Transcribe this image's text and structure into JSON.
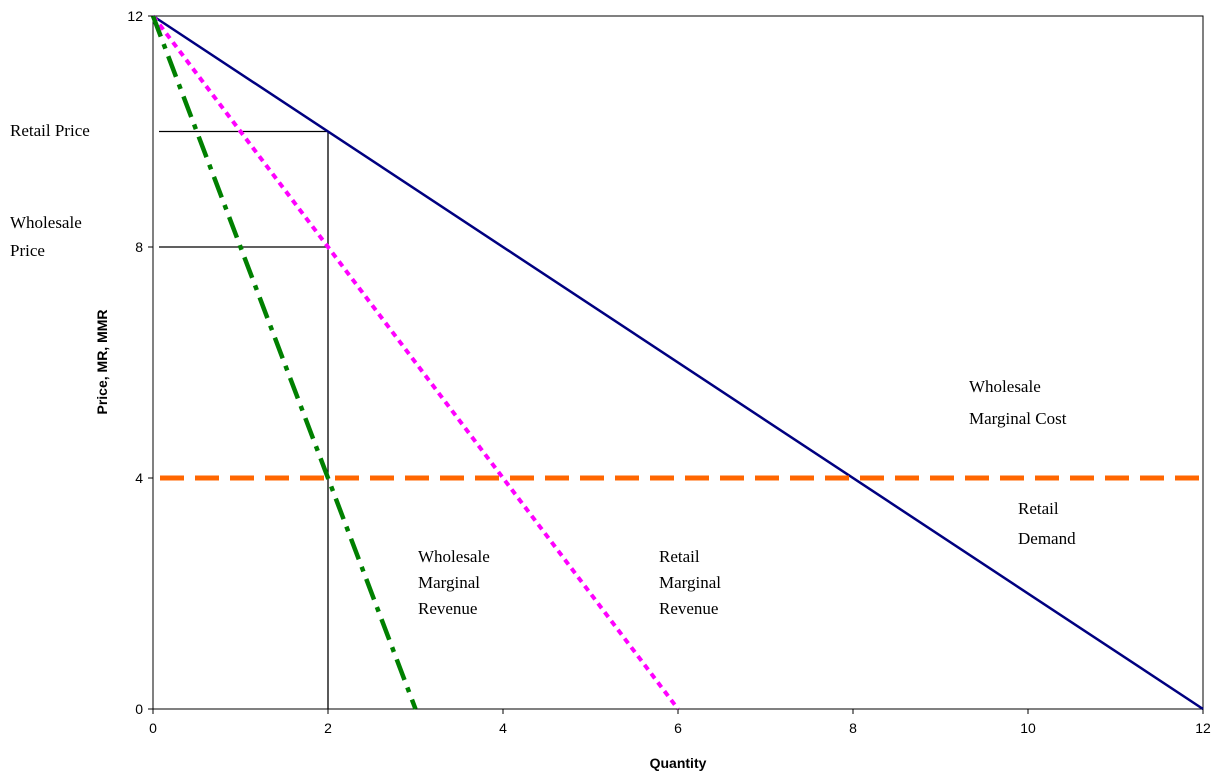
{
  "chart_data": {
    "type": "line",
    "title": "",
    "xlabel": "Quantity",
    "ylabel": "Price, MR, MMR",
    "xlim": [
      0,
      12
    ],
    "ylim": [
      0,
      12
    ],
    "x_ticks": [
      0,
      2,
      4,
      6,
      8,
      10,
      12
    ],
    "y_ticks": [
      0,
      4,
      8,
      12
    ],
    "grid": false,
    "series": [
      {
        "key": "retail_demand",
        "color": "#000080",
        "dash": "solid",
        "x": [
          0,
          12
        ],
        "y": [
          12,
          0
        ]
      },
      {
        "key": "retail_mr",
        "color": "#ff00ff",
        "dash": "dotted",
        "x": [
          0,
          6
        ],
        "y": [
          12,
          0
        ]
      },
      {
        "key": "wholesale_mr",
        "color": "#008000",
        "dash": "dash-dot",
        "x": [
          0,
          3
        ],
        "y": [
          12,
          0
        ]
      },
      {
        "key": "wholesale_mc",
        "color": "#ff6600",
        "dash": "dashed",
        "x": [
          0,
          12
        ],
        "y": [
          4,
          4
        ]
      }
    ],
    "guide_lines": [
      {
        "key": "retail-price-line",
        "x": [
          0,
          2
        ],
        "y": [
          10,
          10
        ]
      },
      {
        "key": "wholesale-price-line",
        "x": [
          0,
          2
        ],
        "y": [
          8,
          8
        ]
      },
      {
        "key": "quantity-line",
        "x": [
          2,
          2
        ],
        "y": [
          0,
          10
        ]
      }
    ],
    "annotations": {
      "retail_price": [
        "Retail Price"
      ],
      "wholesale_price": [
        "Wholesale",
        "Price"
      ],
      "wholesale_mc": [
        "Wholesale",
        "Marginal Cost"
      ],
      "retail_demand": [
        "Retail",
        "Demand"
      ],
      "wholesale_mr": [
        "Wholesale",
        "Marginal",
        "Revenue"
      ],
      "retail_mr": [
        "Retail",
        "Marginal",
        "Revenue"
      ]
    }
  }
}
